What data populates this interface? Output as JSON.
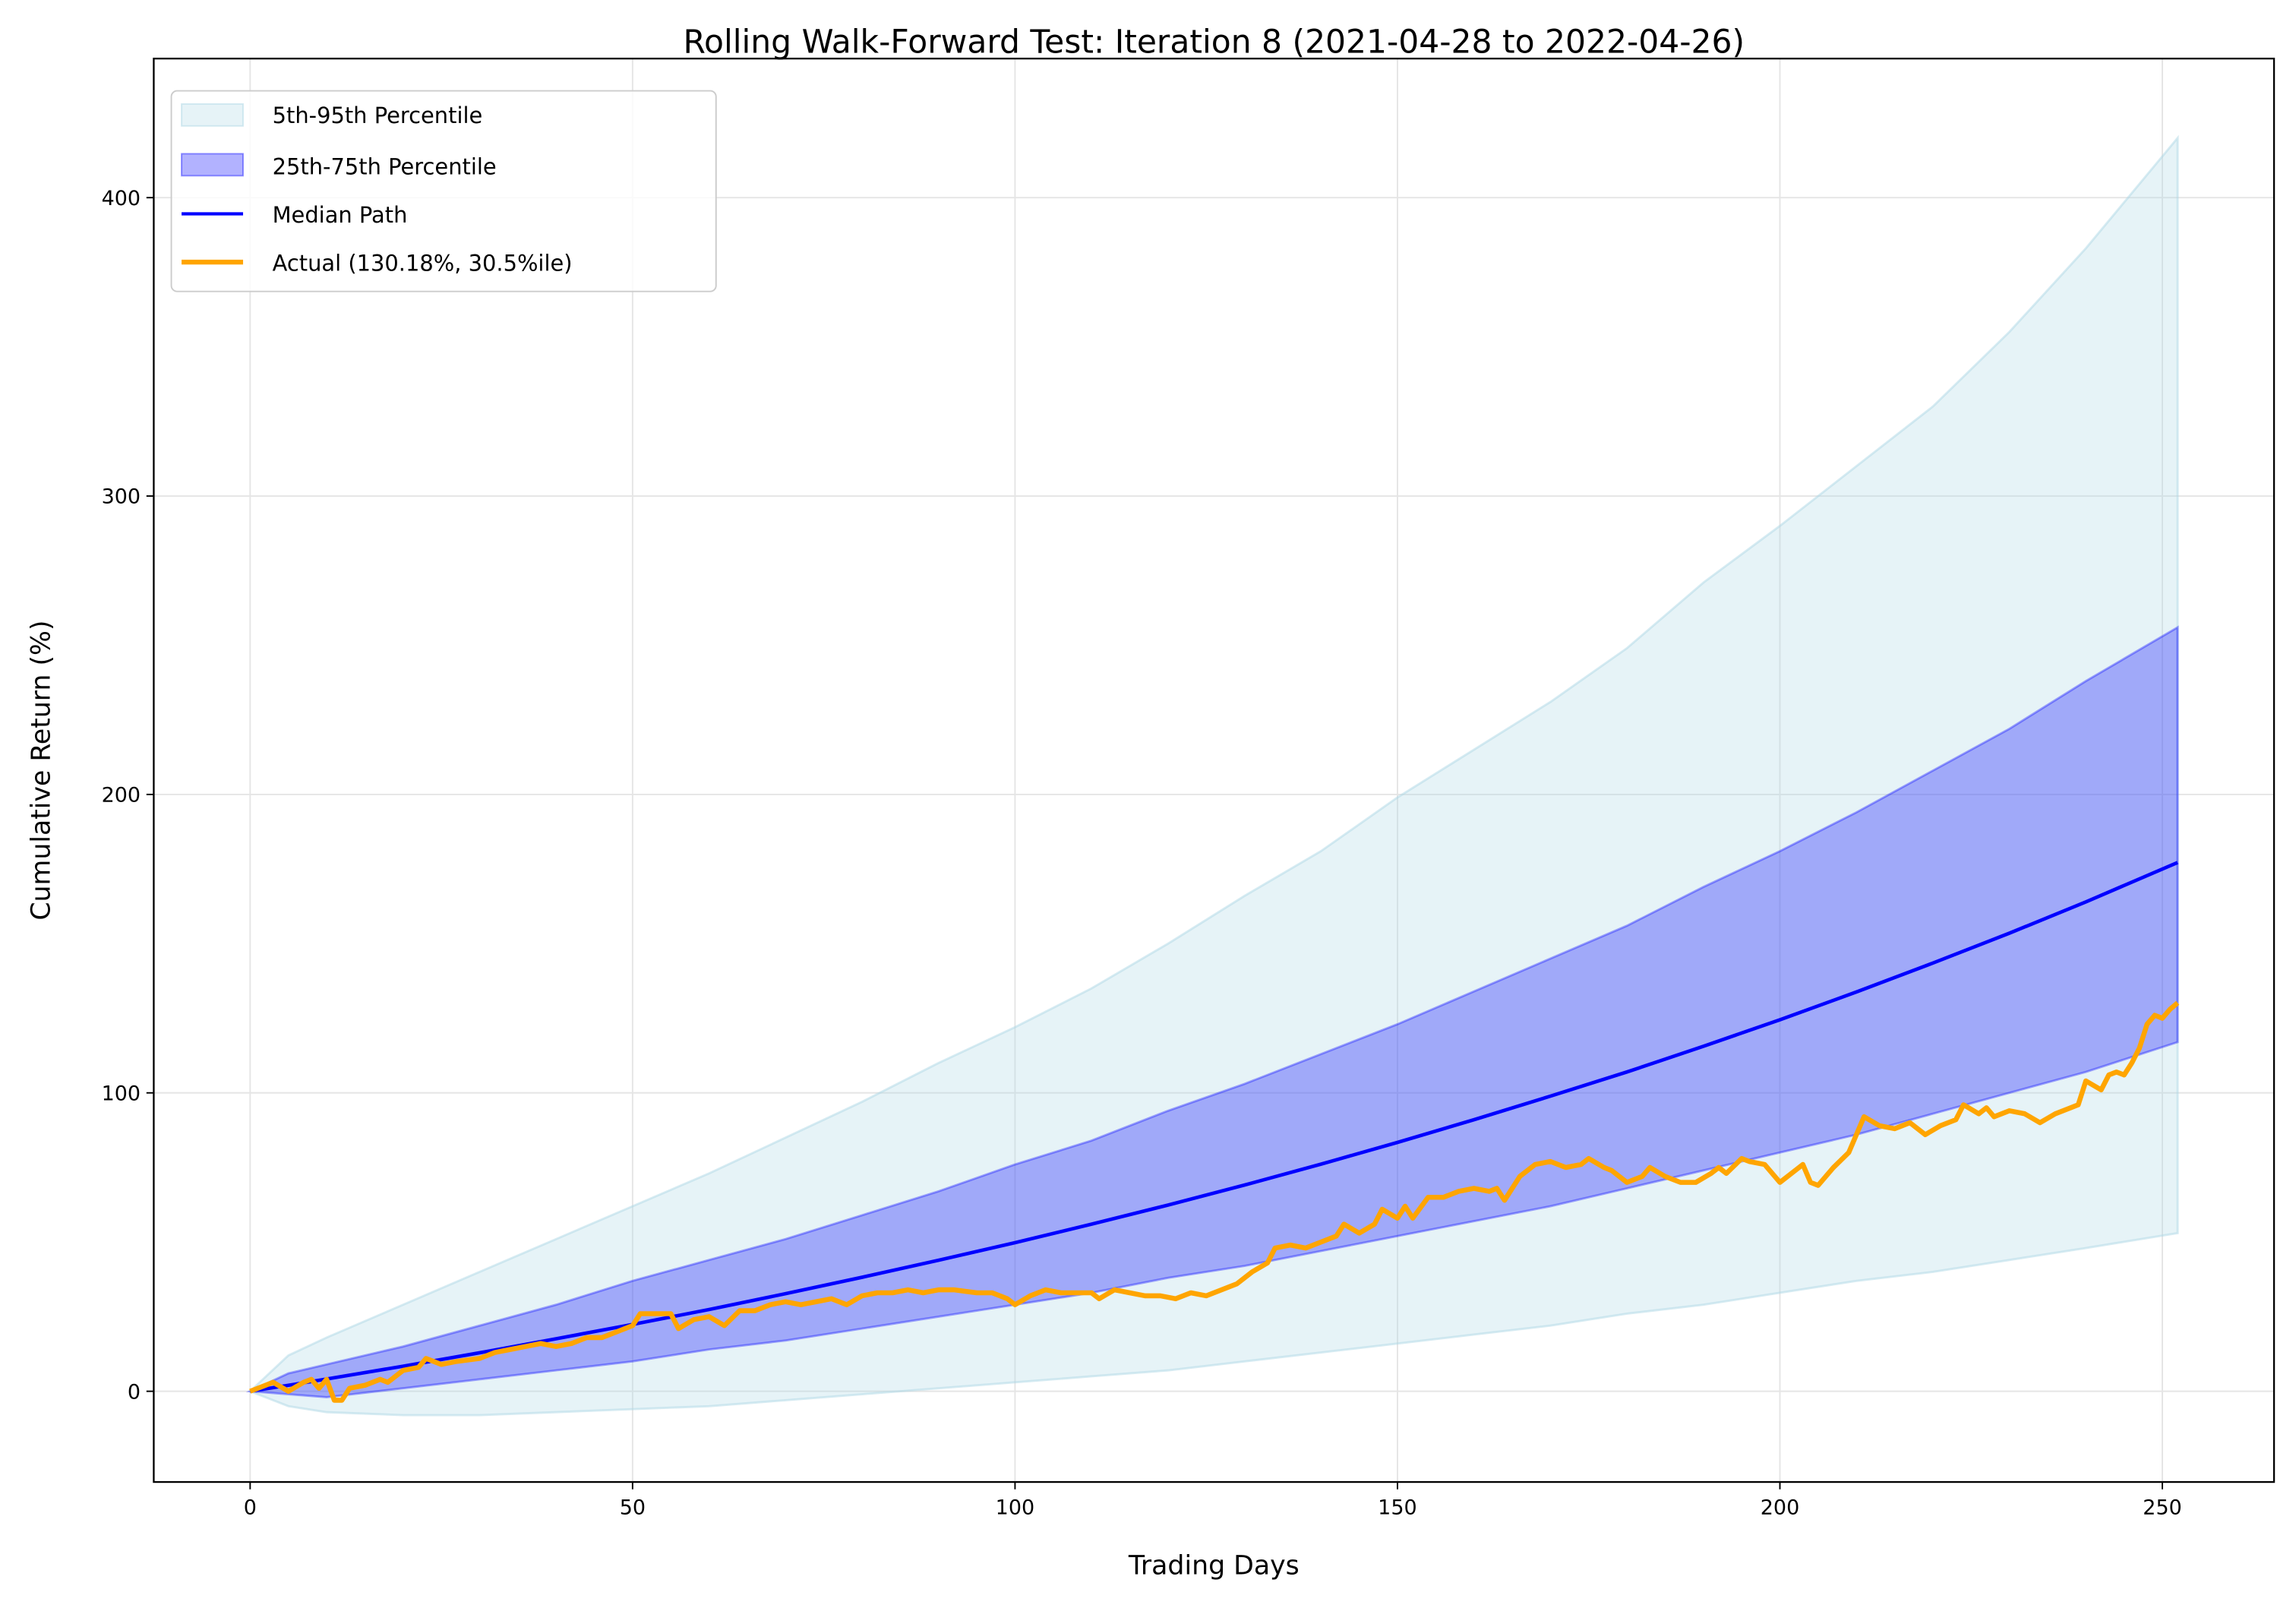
{
  "chart_data": {
    "type": "area",
    "title": "Rolling Walk-Forward Test: Iteration 8 (2021-04-28 to 2022-04-26)",
    "xlabel": "Trading Days",
    "ylabel": "Cumulative Return (%)",
    "xlim": [
      -12.6,
      264.6
    ],
    "ylim": [
      -30.4,
      446.6
    ],
    "xticks": [
      0,
      50,
      100,
      150,
      200,
      250
    ],
    "yticks": [
      0,
      100,
      200,
      300,
      400
    ],
    "grid": true,
    "legend_position": "top-left",
    "legend": [
      {
        "label": "5th-95th Percentile",
        "kind": "band",
        "color": "#add8e6"
      },
      {
        "label": "25th-75th Percentile",
        "kind": "band",
        "color": "#0000ff"
      },
      {
        "label": "Median Path",
        "kind": "line",
        "color": "#0000ff"
      },
      {
        "label": "Actual (130.18%, 30.5%ile)",
        "kind": "line",
        "color": "#ffa500"
      }
    ],
    "bands": {
      "x": [
        0,
        5,
        10,
        20,
        30,
        40,
        50,
        60,
        70,
        80,
        90,
        100,
        110,
        120,
        130,
        140,
        150,
        160,
        170,
        180,
        190,
        200,
        210,
        220,
        230,
        240,
        252
      ],
      "p5": [
        0,
        -5,
        -7,
        -8,
        -8,
        -7,
        -6,
        -5,
        -3,
        -1,
        1,
        3,
        5,
        7,
        10,
        13,
        16,
        19,
        22,
        26,
        29,
        33,
        37,
        40,
        44,
        48,
        53
      ],
      "p25": [
        0,
        -1,
        -2,
        1,
        4,
        7,
        10,
        14,
        17,
        21,
        25,
        29,
        33,
        38,
        42,
        47,
        52,
        57,
        62,
        68,
        74,
        80,
        86,
        93,
        100,
        107,
        117
      ],
      "p75": [
        0,
        6,
        9,
        15,
        22,
        29,
        37,
        44,
        51,
        59,
        67,
        76,
        84,
        94,
        103,
        113,
        123,
        134,
        145,
        156,
        169,
        181,
        194,
        208,
        222,
        238,
        256
      ],
      "p95": [
        0,
        12,
        18,
        29,
        40,
        51,
        62,
        73,
        85,
        97,
        110,
        122,
        135,
        150,
        166,
        181,
        199,
        215,
        231,
        249,
        271,
        290,
        310,
        330,
        355,
        383,
        420
      ]
    },
    "series": [
      {
        "name": "Median Path",
        "x": [
          0,
          5,
          10,
          20,
          30,
          40,
          50,
          60,
          70,
          80,
          90,
          100,
          110,
          120,
          130,
          140,
          150,
          160,
          170,
          180,
          190,
          200,
          210,
          220,
          230,
          240,
          252
        ],
        "y": [
          0,
          2.0,
          4.1,
          8.4,
          12.9,
          17.6,
          22.4,
          27.4,
          32.7,
          38.2,
          43.9,
          49.8,
          56.0,
          62.4,
          69.1,
          76.1,
          83.4,
          91.0,
          98.9,
          107.0,
          115.6,
          124.5,
          133.8,
          143.5,
          153.5,
          164.0,
          177.2
        ]
      },
      {
        "name": "Actual (130.18%, 30.5%ile)",
        "x": [
          0,
          2,
          3,
          5,
          7,
          8,
          9,
          10,
          11,
          12,
          13,
          15,
          17,
          18,
          20,
          22,
          23,
          25,
          27,
          30,
          32,
          34,
          36,
          38,
          40,
          42,
          44,
          46,
          48,
          50,
          51,
          53,
          55,
          56,
          58,
          60,
          62,
          64,
          66,
          68,
          70,
          72,
          74,
          76,
          78,
          80,
          82,
          84,
          86,
          88,
          90,
          92,
          95,
          97,
          99,
          100,
          102,
          104,
          106,
          108,
          110,
          111,
          113,
          115,
          117,
          119,
          121,
          123,
          125,
          127,
          129,
          131,
          133,
          134,
          136,
          138,
          140,
          142,
          143,
          145,
          147,
          148,
          150,
          151,
          152,
          154,
          156,
          158,
          160,
          162,
          163,
          164,
          166,
          168,
          170,
          172,
          174,
          175,
          177,
          178,
          180,
          182,
          183,
          185,
          187,
          189,
          191,
          192,
          193,
          195,
          196,
          198,
          200,
          202,
          203,
          204,
          205,
          207,
          209,
          210,
          211,
          213,
          215,
          217,
          219,
          221,
          223,
          224,
          226,
          227,
          228,
          230,
          232,
          234,
          236,
          238,
          239,
          240,
          242,
          243,
          244,
          245,
          246,
          247,
          248,
          249,
          250,
          251,
          252
        ],
        "y": [
          0,
          2,
          3,
          0,
          3,
          4,
          1,
          4,
          -3,
          -3,
          1,
          2,
          4,
          3,
          7,
          8,
          11,
          9,
          10,
          11,
          13,
          14,
          15,
          16,
          15,
          16,
          18,
          18,
          20,
          22,
          26,
          26,
          26,
          21,
          24,
          25,
          22,
          27,
          27,
          29,
          30,
          29,
          30,
          31,
          29,
          32,
          33,
          33,
          34,
          33,
          34,
          34,
          33,
          33,
          31,
          29,
          32,
          34,
          33,
          33,
          33,
          31,
          34,
          33,
          32,
          32,
          31,
          33,
          32,
          34,
          36,
          40,
          43,
          48,
          49,
          48,
          50,
          52,
          56,
          53,
          56,
          61,
          58,
          62,
          58,
          65,
          65,
          67,
          68,
          67,
          68,
          64,
          72,
          76,
          77,
          75,
          76,
          78,
          75,
          74,
          70,
          72,
          75,
          72,
          70,
          70,
          73,
          75,
          73,
          78,
          77,
          76,
          70,
          74,
          76,
          70,
          69,
          75,
          80,
          86,
          92,
          89,
          88,
          90,
          86,
          89,
          91,
          96,
          93,
          95,
          92,
          94,
          93,
          90,
          93,
          95,
          96,
          104,
          101,
          106,
          107,
          106,
          110,
          115,
          123,
          126,
          125,
          128,
          130.18
        ]
      }
    ],
    "colors": {
      "outer_band": "#add8e6",
      "inner_band": "#0000ff",
      "median": "#0000ff",
      "actual": "#ffa500",
      "grid": "#e5e5e5"
    }
  }
}
